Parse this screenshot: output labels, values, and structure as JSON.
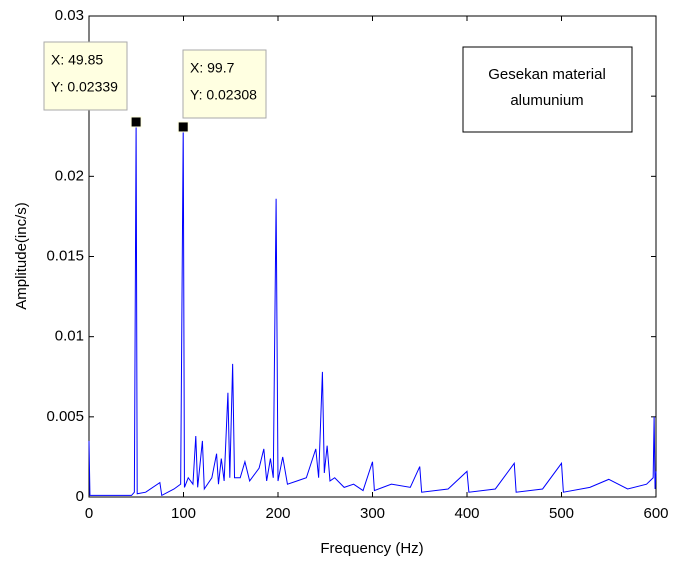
{
  "chart_data": {
    "type": "line",
    "xlabel": "Frequency (Hz)",
    "ylabel": "Amplitude(inc/s)",
    "x": [
      0,
      1,
      45,
      48,
      49.85,
      51,
      60,
      75,
      77,
      90,
      97,
      99.7,
      101,
      105,
      110,
      113,
      115,
      120,
      122,
      130,
      135,
      137,
      140,
      143,
      147,
      149,
      152,
      154,
      160,
      165,
      170,
      180,
      185,
      188,
      192,
      195,
      198,
      200,
      205,
      210,
      220,
      230,
      240,
      243,
      247,
      249,
      252,
      255,
      260,
      270,
      280,
      290,
      300,
      302,
      320,
      340,
      350,
      352,
      380,
      400,
      402,
      430,
      450,
      452,
      480,
      500,
      502,
      530,
      550,
      570,
      590,
      597,
      598,
      599,
      600
    ],
    "series": [
      {
        "color": "#0000ff",
        "values": [
          0.0035,
          0.0001,
          0.0001,
          0.0003,
          0.02339,
          0.0002,
          0.0003,
          0.0009,
          0.0001,
          0.0005,
          0.0008,
          0.02308,
          0.0006,
          0.0012,
          0.0008,
          0.0038,
          0.0006,
          0.0035,
          0.0005,
          0.0012,
          0.0027,
          0.0008,
          0.0024,
          0.001,
          0.0065,
          0.0012,
          0.0083,
          0.0012,
          0.0012,
          0.0022,
          0.001,
          0.0018,
          0.003,
          0.001,
          0.0024,
          0.0012,
          0.0186,
          0.001,
          0.0025,
          0.0008,
          0.001,
          0.0012,
          0.003,
          0.0012,
          0.0078,
          0.0015,
          0.0032,
          0.001,
          0.0012,
          0.0006,
          0.0008,
          0.0004,
          0.0022,
          0.0004,
          0.0008,
          0.0006,
          0.0019,
          0.0003,
          0.0005,
          0.0016,
          0.0003,
          0.0005,
          0.0021,
          0.0003,
          0.0005,
          0.0021,
          0.0003,
          0.0006,
          0.0011,
          0.0005,
          0.0008,
          0.0012,
          0.005,
          0.0005,
          0.0016
        ]
      }
    ],
    "xlim": [
      0,
      600
    ],
    "xticks": [
      0,
      100,
      200,
      300,
      400,
      500,
      600
    ],
    "ylim": [
      0,
      0.03
    ],
    "yticks": [
      0,
      0.005,
      0.01,
      0.015,
      0.02,
      0.025,
      0.03
    ],
    "annotation": [
      "Gesekan material",
      "alumunium"
    ],
    "datatips": [
      {
        "x": 49.85,
        "y": 0.02339,
        "x_label": "X: 49.85",
        "y_label": "Y: 0.02339"
      },
      {
        "x": 99.7,
        "y": 0.02308,
        "x_label": "X: 99.7",
        "y_label": "Y: 0.02308"
      }
    ]
  }
}
